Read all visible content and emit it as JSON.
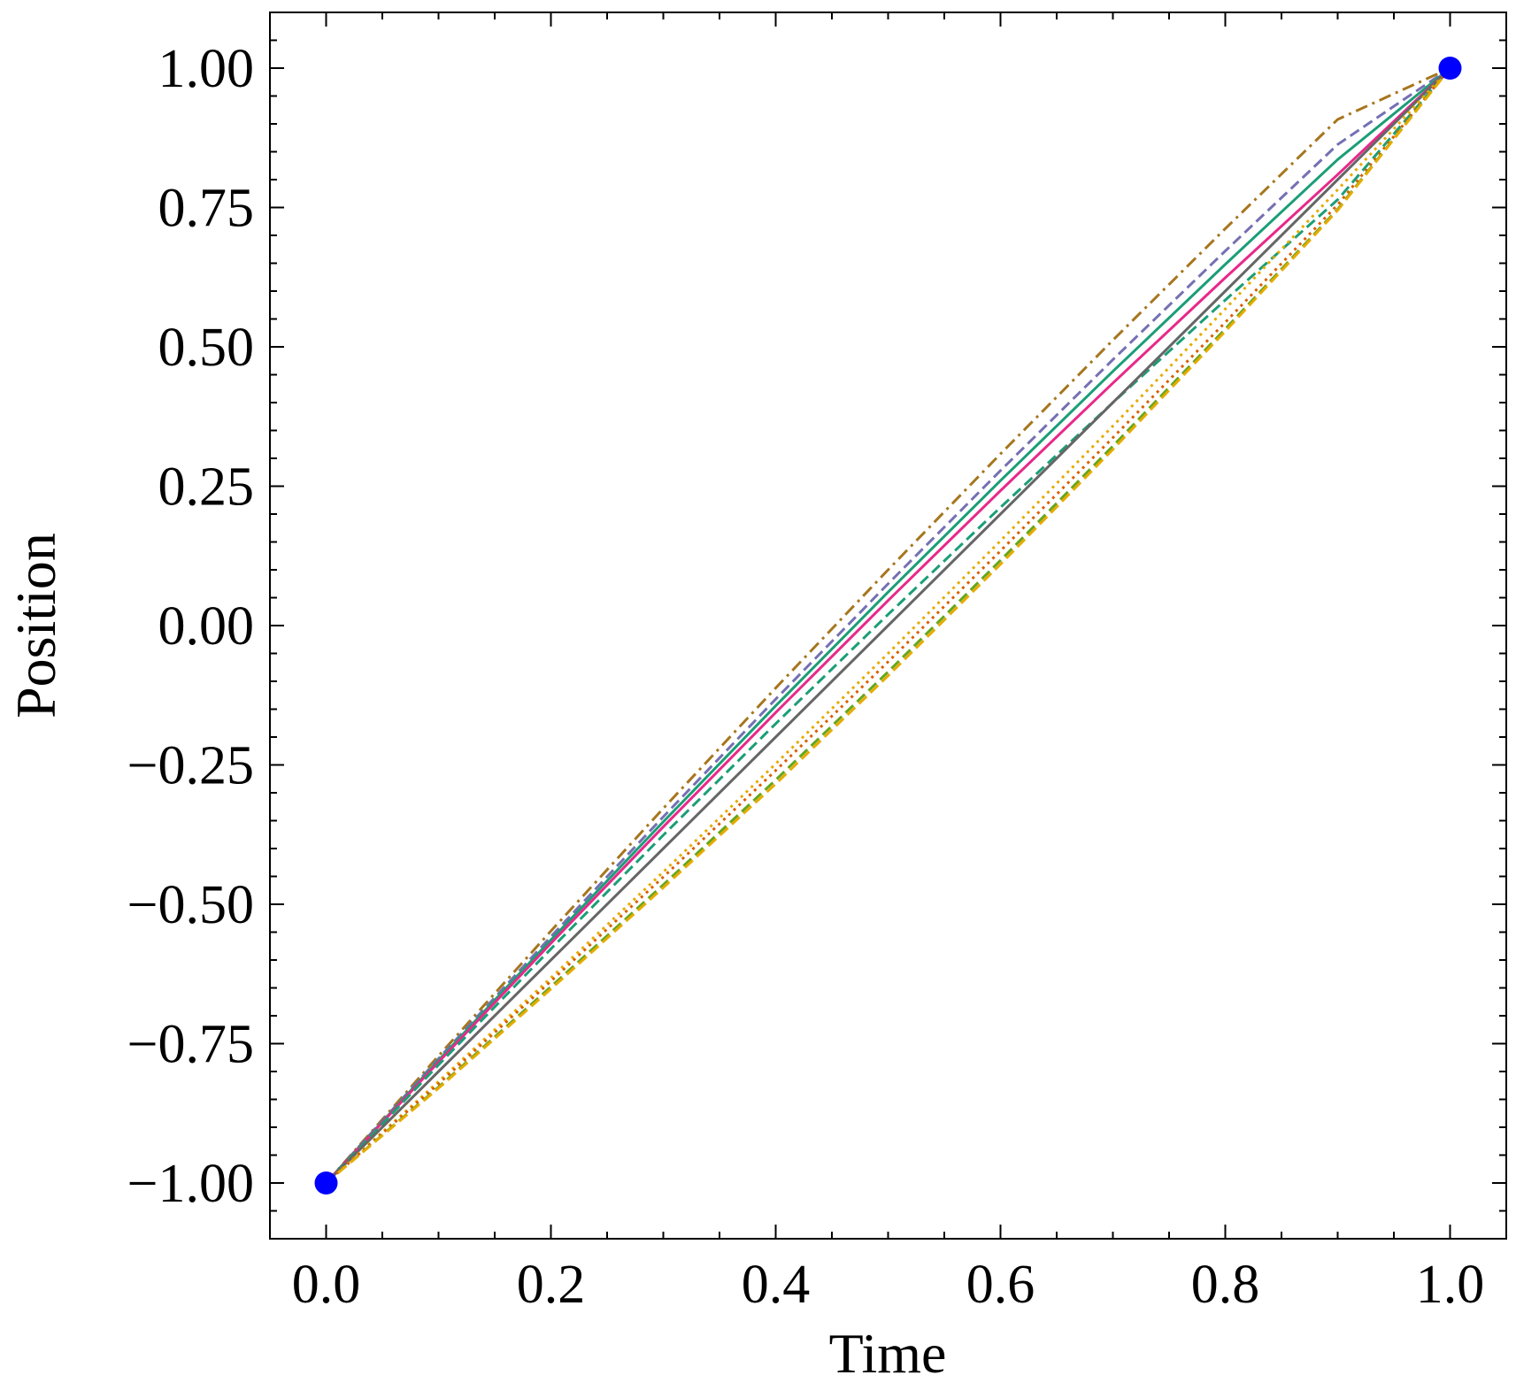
{
  "chart_data": {
    "type": "line",
    "title": "",
    "xlabel": "Time",
    "ylabel": "Position",
    "xlim": [
      -0.05,
      1.05
    ],
    "ylim": [
      -1.1,
      1.1
    ],
    "x_ticks": [
      0.0,
      0.2,
      0.4,
      0.6,
      0.8,
      1.0
    ],
    "x_tick_labels": [
      "0.0",
      "0.2",
      "0.4",
      "0.6",
      "0.8",
      "1.0"
    ],
    "y_ticks": [
      -1.0,
      -0.75,
      -0.5,
      -0.25,
      0.0,
      0.25,
      0.5,
      0.75,
      1.0
    ],
    "y_tick_labels": [
      "−1.00",
      "−0.75",
      "−0.50",
      "−0.25",
      "0.00",
      "0.25",
      "0.50",
      "0.75",
      "1.00"
    ],
    "grid": false,
    "x": [
      0.0,
      0.1,
      0.2,
      0.3,
      0.4,
      0.5,
      0.6,
      0.7,
      0.8,
      0.9,
      1.0
    ],
    "series": [
      {
        "color": "#a6761d",
        "style": "dashdot",
        "values": [
          -1.0,
          -0.772,
          -0.548,
          -0.328,
          -0.112,
          0.1,
          0.308,
          0.512,
          0.712,
          0.908,
          1.0
        ]
      },
      {
        "color": "#7570b3",
        "style": "dashed",
        "values": [
          -1.0,
          -0.777,
          -0.558,
          -0.343,
          -0.132,
          0.075,
          0.278,
          0.477,
          0.672,
          0.863,
          1.0
        ]
      },
      {
        "color": "#1b9e77",
        "style": "solid",
        "values": [
          -1.0,
          -0.78,
          -0.564,
          -0.352,
          -0.144,
          0.06,
          0.26,
          0.456,
          0.648,
          0.836,
          1.0
        ]
      },
      {
        "color": "#e7298a",
        "style": "solid",
        "values": [
          -1.0,
          -0.783,
          -0.57,
          -0.361,
          -0.156,
          0.045,
          0.242,
          0.435,
          0.624,
          0.809,
          1.0
        ]
      },
      {
        "color": "#1b9e77",
        "style": "dashed",
        "values": [
          -1.0,
          -0.788,
          -0.58,
          -0.376,
          -0.176,
          0.02,
          0.212,
          0.4,
          0.584,
          0.764,
          1.0
        ]
      },
      {
        "color": "#666666",
        "style": "solid",
        "values": [
          -1.0,
          -0.8,
          -0.6,
          -0.4,
          -0.2,
          0.0,
          0.2,
          0.4,
          0.6,
          0.8,
          1.0
        ]
      },
      {
        "color": "#e6ab02",
        "style": "dotted",
        "values": [
          -1.0,
          -0.818,
          -0.632,
          -0.442,
          -0.248,
          -0.05,
          0.152,
          0.358,
          0.568,
          0.782,
          1.0
        ]
      },
      {
        "color": "#d95f02",
        "style": "dotted",
        "values": [
          -1.0,
          -0.822,
          -0.638,
          -0.451,
          -0.26,
          -0.065,
          0.134,
          0.337,
          0.544,
          0.755,
          1.0
        ]
      },
      {
        "color": "#66a61e",
        "style": "dashed",
        "values": [
          -1.0,
          -0.828,
          -0.648,
          -0.465,
          -0.277,
          -0.083,
          0.117,
          0.322,
          0.532,
          0.747,
          1.0
        ]
      },
      {
        "color": "#e6ab02",
        "style": "dashed",
        "values": [
          -1.0,
          -0.83,
          -0.652,
          -0.47,
          -0.284,
          -0.09,
          0.11,
          0.316,
          0.528,
          0.745,
          1.0
        ]
      }
    ],
    "markers": [
      {
        "x": 0.0,
        "y": -1.0,
        "color": "#0000ff"
      },
      {
        "x": 1.0,
        "y": 1.0,
        "color": "#0000ff"
      }
    ]
  }
}
